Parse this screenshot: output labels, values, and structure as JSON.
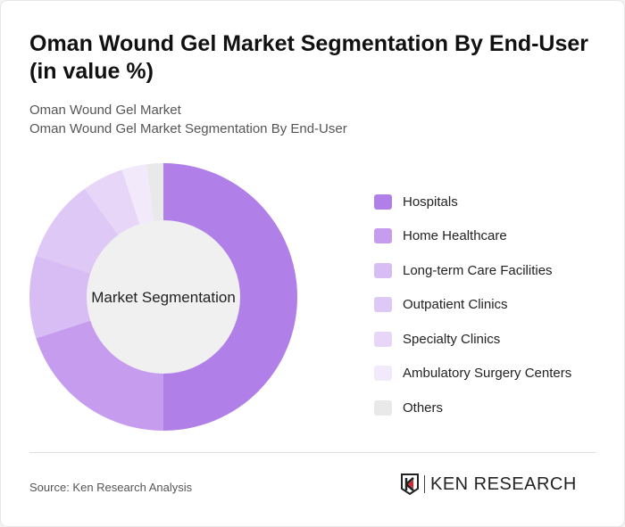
{
  "title": "Oman Wound Gel Market Segmentation By End-User (in value %)",
  "subtitle_1": "Oman Wound Gel Market",
  "subtitle_2": "Oman Wound Gel Market Segmentation By End-User",
  "source": "Source: Ken Research Analysis",
  "logo_text": "KEN RESEARCH",
  "chart_data": {
    "type": "pie",
    "variant": "donut",
    "center_label": "Market Segmentation",
    "legend_position": "right",
    "categories": [
      "Hospitals",
      "Home Healthcare",
      "Long-term Care Facilities",
      "Outpatient Clinics",
      "Specialty Clinics",
      "Ambulatory Surgery Centers",
      "Others"
    ],
    "values": [
      50,
      20,
      10,
      10,
      5,
      3,
      2
    ],
    "colors": [
      "#b07fe8",
      "#c69cee",
      "#d8bdf4",
      "#dec8f5",
      "#e7d6f8",
      "#f2eafb",
      "#e9e9e9"
    ]
  }
}
